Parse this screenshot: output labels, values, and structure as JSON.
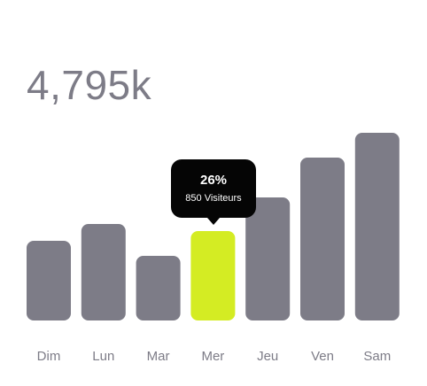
{
  "header": {
    "total": "4,795k"
  },
  "tooltip": {
    "percent": "26%",
    "label": "850 Visiteurs"
  },
  "colors": {
    "bar": "#7d7c87",
    "highlight": "#d4ec23",
    "label": "#7d7c87",
    "tooltip_bg": "#050505"
  },
  "chart_data": {
    "type": "bar",
    "categories": [
      "Dim",
      "Lun",
      "Mar",
      "Mer",
      "Jeu",
      "Ven",
      "Sam"
    ],
    "values": [
      90,
      109,
      73,
      101,
      139,
      184,
      212
    ],
    "highlight_index": 3,
    "ylim": [
      0,
      220
    ],
    "grid": false,
    "legend": "none"
  }
}
